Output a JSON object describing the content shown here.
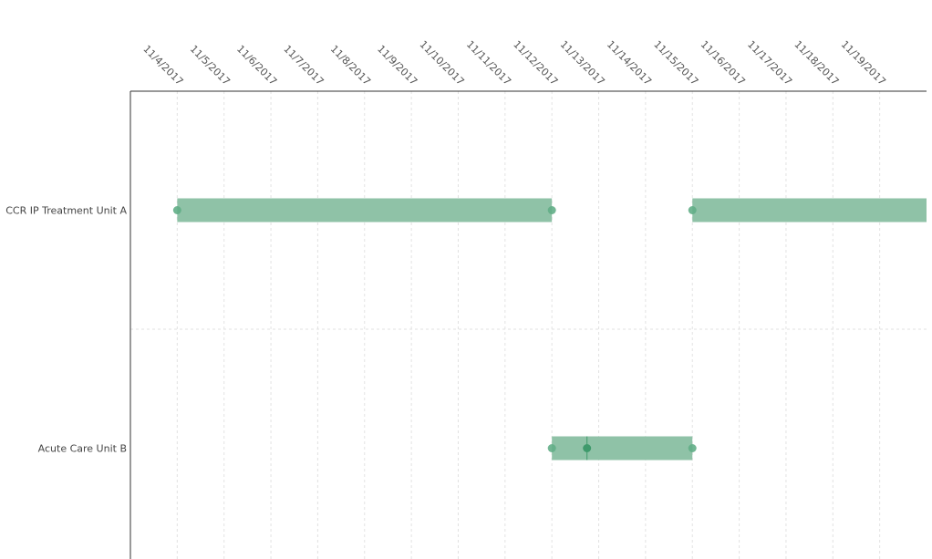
{
  "chart_data": {
    "type": "gantt",
    "title": "",
    "xlabel": "",
    "ylabel": "",
    "x_ticks": [
      "11/4/2017",
      "11/5/2017",
      "11/6/2017",
      "11/7/2017",
      "11/8/2017",
      "11/9/2017",
      "11/10/2017",
      "11/11/2017",
      "11/12/2017",
      "11/13/2017",
      "11/14/2017",
      "11/15/2017",
      "11/16/2017",
      "11/17/2017",
      "11/18/2017",
      "11/19/2017"
    ],
    "xlim": [
      "2017-11-03T12:00",
      "2017-11-20T12:00"
    ],
    "grid": true,
    "rows": [
      {
        "label": "CCR IP Treatment Unit A"
      },
      {
        "label": "Acute Care Unit B"
      }
    ],
    "segments": [
      {
        "row": "CCR IP Treatment Unit A",
        "start": "2017-11-04T12:00",
        "end": "2017-11-12T12:00"
      },
      {
        "row": "CCR IP Treatment Unit A",
        "start": "2017-11-15T12:00",
        "end": "2017-11-20T12:00"
      },
      {
        "row": "Acute Care Unit B",
        "start": "2017-11-12T12:00",
        "end": "2017-11-15T12:00"
      }
    ],
    "points": [
      {
        "row": "CCR IP Treatment Unit A",
        "x": "2017-11-04T12:00"
      },
      {
        "row": "CCR IP Treatment Unit A",
        "x": "2017-11-12T12:00"
      },
      {
        "row": "CCR IP Treatment Unit A",
        "x": "2017-11-15T12:00"
      },
      {
        "row": "Acute Care Unit B",
        "x": "2017-11-12T12:00"
      },
      {
        "row": "Acute Care Unit B",
        "x": "2017-11-13T06:00",
        "emphasis": true
      },
      {
        "row": "Acute Care Unit B",
        "x": "2017-11-15T12:00"
      }
    ],
    "colors": {
      "bar": "#8fc2a7",
      "point": "#62ae87",
      "point_emphasis": "#3f9a6c",
      "grid": "#e2e2e2",
      "axis": "#333333"
    }
  }
}
